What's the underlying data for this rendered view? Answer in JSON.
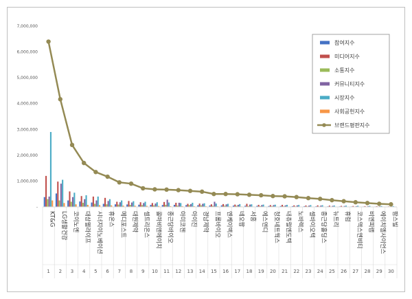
{
  "chart_data": {
    "type": "bar",
    "ylim": [
      0,
      7000000
    ],
    "y_ticks": [
      "7,000,000",
      "6,000,000",
      "5,000,000",
      "4,000,000",
      "3,000,000",
      "2,000,000",
      "1,000,000",
      "-"
    ],
    "legend_position": "top-right",
    "ranks": [
      "1",
      "2",
      "3",
      "4",
      "5",
      "6",
      "7",
      "8",
      "9",
      "10",
      "11",
      "12",
      "13",
      "14",
      "15",
      "16",
      "17",
      "18",
      "19",
      "20",
      "21",
      "22",
      "23",
      "24",
      "25",
      "26",
      "27",
      "28",
      "29",
      "30"
    ],
    "categories": [
      "KT&G",
      "LG생활건강",
      "코이노엔",
      "대상웰라이프",
      "시너지이노베이션",
      "휴온스",
      "메디포스트",
      "대원제약",
      "셀트리온스",
      "콜마비앤에이치",
      "종근당바이오",
      "아미코젠",
      "아이진",
      "경남제약",
      "프롬바이오",
      "엔케이맥스",
      "네오팜",
      "서흥",
      "에스앤디",
      "청호네트웍스",
      "내츄럴엔도텍",
      "노바렉스",
      "셀바이오텍",
      "종근당홀딩스",
      "뉴트리",
      "휴럼",
      "코스맥스엔비티",
      "비엔피랩",
      "에이치엘사이언스",
      "팜스빌"
    ],
    "series": [
      {
        "name": "참여지수",
        "color": "#4472C4",
        "values": [
          380000,
          520000,
          250000,
          210000,
          170000,
          120000,
          100000,
          95000,
          85000,
          80000,
          75000,
          80000,
          70000,
          65000,
          55000,
          60000,
          50000,
          45000,
          40000,
          35000,
          35000,
          30000,
          28000,
          25000,
          22000,
          20000,
          18000,
          16000,
          15000,
          12000
        ]
      },
      {
        "name": "미디어지수",
        "color": "#C0504D",
        "values": [
          1200000,
          980000,
          600000,
          420000,
          400000,
          350000,
          200000,
          230000,
          180000,
          150000,
          190000,
          160000,
          120000,
          130000,
          100000,
          110000,
          90000,
          120000,
          80000,
          70000,
          80000,
          60000,
          55000,
          60000,
          50000,
          40000,
          35000,
          30000,
          25000,
          20000
        ]
      },
      {
        "name": "소통지수",
        "color": "#9BBB59",
        "values": [
          300000,
          250000,
          200000,
          160000,
          120000,
          100000,
          90000,
          80000,
          70000,
          60000,
          80000,
          50000,
          70000,
          60000,
          40000,
          45000,
          40000,
          35000,
          30000,
          30000,
          25000,
          20000,
          20000,
          18000,
          15000,
          14000,
          12000,
          10000,
          9000,
          8000
        ]
      },
      {
        "name": "커뮤니티지수",
        "color": "#8064A2",
        "values": [
          400000,
          900000,
          380000,
          300000,
          250000,
          230000,
          180000,
          170000,
          150000,
          130000,
          280000,
          160000,
          110000,
          120000,
          200000,
          100000,
          80000,
          90000,
          70000,
          70000,
          60000,
          60000,
          50000,
          50000,
          40000,
          35000,
          30000,
          28000,
          25000,
          20000
        ]
      },
      {
        "name": "시장지수",
        "color": "#4BACC6",
        "values": [
          2900000,
          1050000,
          550000,
          450000,
          400000,
          300000,
          250000,
          220000,
          200000,
          180000,
          170000,
          150000,
          160000,
          140000,
          130000,
          120000,
          110000,
          100000,
          90000,
          85000,
          80000,
          75000,
          70000,
          65000,
          55000,
          50000,
          45000,
          40000,
          35000,
          30000
        ]
      },
      {
        "name": "사회공헌지수",
        "color": "#F79646",
        "values": [
          250000,
          150000,
          100000,
          80000,
          70000,
          60000,
          50000,
          45000,
          40000,
          35000,
          30000,
          30000,
          28000,
          25000,
          22000,
          20000,
          18000,
          16000,
          15000,
          14000,
          12000,
          10000,
          10000,
          9000,
          8000,
          7000,
          6000,
          5000,
          5000,
          4000
        ]
      }
    ],
    "line_series": {
      "name": "브랜드평판지수",
      "color": "#948A54",
      "values": [
        6400000,
        4170000,
        2400000,
        1700000,
        1350000,
        1170000,
        950000,
        900000,
        720000,
        680000,
        670000,
        650000,
        620000,
        590000,
        500000,
        500000,
        490000,
        470000,
        450000,
        420000,
        410000,
        380000,
        340000,
        310000,
        260000,
        220000,
        180000,
        150000,
        120000,
        100000
      ]
    }
  }
}
